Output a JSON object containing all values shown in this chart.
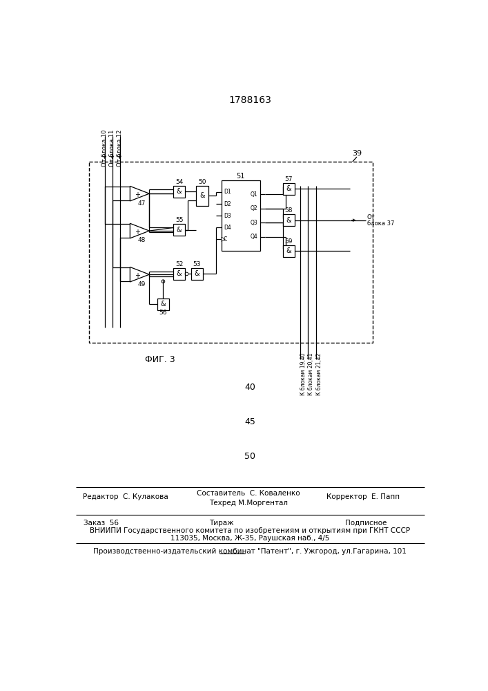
{
  "title": "1788163",
  "fig_label": "ФИГ. 3",
  "block_number": "39",
  "page_numbers": [
    "40",
    "45",
    "50"
  ],
  "footer_line1_left": "Редактор  С. Кулакова",
  "footer_comp": "Составитель  С. Коваленко",
  "footer_tech": "Техред М.Моргентал",
  "footer_line1_right": "Корректор  Е. Папп",
  "footer_line2_left": "Заказ  56",
  "footer_line2_center": "Тираж",
  "footer_line2_right": "Подписное",
  "footer_line3": "ВНИИПИ Государственного комитета по изобретениям и открытиям при ГКНТ СССР",
  "footer_line4": "113035, Москва, Ж-35, Раушская наб., 4/5",
  "footer_line5": "Производственно-издательский комбинат \"Патент\", г. Ужгород, ул.Гагарина, 101",
  "input_labels": [
    "От блока 10",
    "От блока 11",
    "От блока 12"
  ],
  "output_label": "От\nблока 37",
  "output_labels_bottom": [
    "К блокам 19,40",
    "К блокам 20,41",
    "К блокам 21,42"
  ],
  "bg_color": "#ffffff"
}
